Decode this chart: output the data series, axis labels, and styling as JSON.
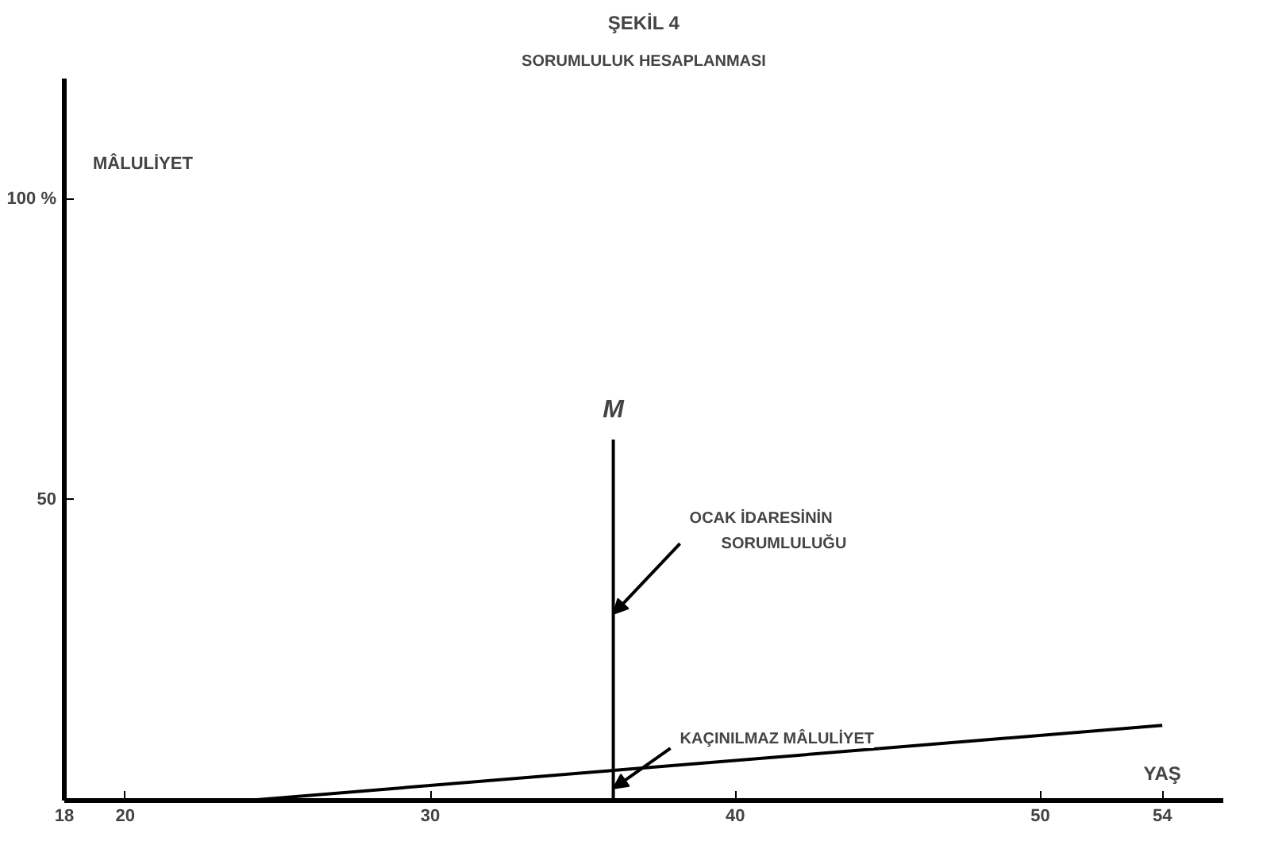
{
  "chart_data": {
    "type": "line",
    "title": "ŞEKİL 4",
    "subtitle": "SORUMLULUK HESAPLANMASI",
    "xlabel": "YAŞ",
    "ylabel": "MÂLULİYET",
    "x": [
      24,
      36,
      54
    ],
    "series": [
      {
        "color": "#000000",
        "values": [
          0,
          5,
          12.5
        ]
      },
      {
        "name": "M",
        "color": "#000000",
        "x": [
          36,
          36
        ],
        "values": [
          0,
          60
        ]
      }
    ],
    "annotations": [
      {
        "text": "OCAK İDARESİNİN SORUMLULUĞU",
        "x": 36,
        "y": 31
      },
      {
        "text": "KAÇINILMAZ MÂLULİYET",
        "x": 36,
        "y": 2
      }
    ],
    "xlim": [
      18,
      56
    ],
    "ylim": [
      0,
      120
    ],
    "xticks": [
      18,
      20,
      30,
      40,
      50,
      54
    ],
    "yticks": [
      {
        "value": 50,
        "label": "50"
      },
      {
        "value": 100,
        "label": "100 %"
      }
    ],
    "grid": false,
    "marker": "none",
    "line_style": "solid"
  }
}
